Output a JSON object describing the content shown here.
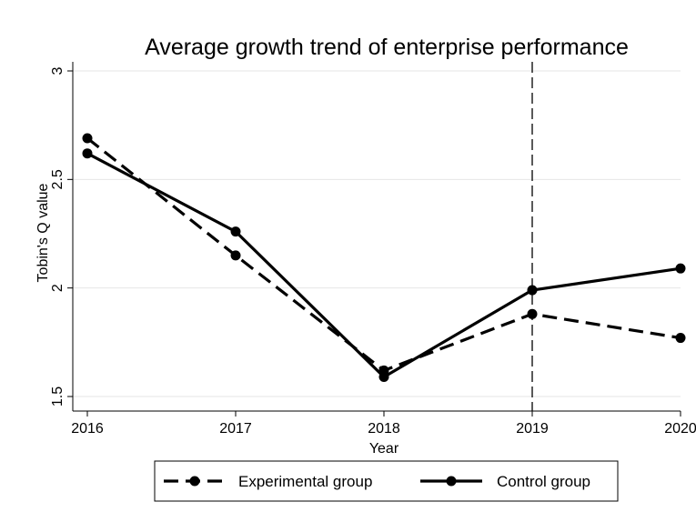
{
  "chart_data": {
    "type": "line",
    "title": "Average growth trend of enterprise performance",
    "xlabel": "Year",
    "ylabel": "Tobin's Q value",
    "x": [
      2016,
      2017,
      2018,
      2019,
      2020
    ],
    "xlim": [
      2016,
      2020
    ],
    "ylim": [
      1.5,
      3
    ],
    "yticks": [
      1.5,
      2,
      2.5,
      3
    ],
    "reference_line_x": 2019,
    "grid": "horizontal",
    "legend_position": "bottom",
    "series": [
      {
        "name": "Experimental group",
        "style": "dashed",
        "color": "#000000",
        "values": [
          2.69,
          2.15,
          1.62,
          1.88,
          1.77
        ]
      },
      {
        "name": "Control group",
        "style": "solid",
        "color": "#000000",
        "values": [
          2.62,
          2.26,
          1.59,
          1.99,
          2.09
        ]
      }
    ]
  }
}
